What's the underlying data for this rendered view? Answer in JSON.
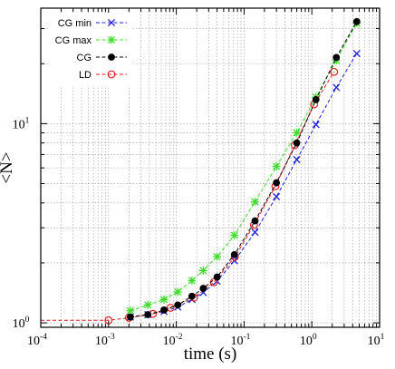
{
  "chart_data": {
    "type": "line",
    "xlabel": "time (s)",
    "ylabel": "<N>",
    "xscale": "log",
    "yscale": "log",
    "xlim": [
      0.0001,
      10
    ],
    "ylim": [
      0.95,
      38
    ],
    "grid": true,
    "legend_position": "top-left",
    "x_ticks": [
      {
        "base": "10",
        "exp": "-4",
        "value": 0.0001
      },
      {
        "base": "10",
        "exp": "-3",
        "value": 0.001
      },
      {
        "base": "10",
        "exp": "-2",
        "value": 0.01
      },
      {
        "base": "10",
        "exp": "-1",
        "value": 0.1
      },
      {
        "base": "10",
        "exp": "0",
        "value": 1
      },
      {
        "base": "10",
        "exp": "1",
        "value": 10
      }
    ],
    "y_ticks": [
      {
        "base": "10",
        "exp": "0",
        "value": 1
      },
      {
        "base": "10",
        "exp": "1",
        "value": 10
      }
    ],
    "series": [
      {
        "name": "CG min",
        "color": "#1f1fd6",
        "marker": "x",
        "x": [
          0.0021,
          0.0038,
          0.0066,
          0.0105,
          0.017,
          0.025,
          0.04,
          0.072,
          0.145,
          0.3,
          0.6,
          1.15,
          2.3,
          4.6
        ],
        "y": [
          1.07,
          1.1,
          1.14,
          1.2,
          1.31,
          1.42,
          1.62,
          2.05,
          2.85,
          4.3,
          6.6,
          9.9,
          15.2,
          22.5
        ]
      },
      {
        "name": "CG max",
        "color": "#3ddc2a",
        "marker": "star",
        "x": [
          0.0021,
          0.0038,
          0.0066,
          0.0105,
          0.017,
          0.025,
          0.04,
          0.072,
          0.145,
          0.3,
          0.6,
          1.15,
          2.3,
          4.6
        ],
        "y": [
          1.15,
          1.23,
          1.31,
          1.43,
          1.63,
          1.83,
          2.15,
          2.75,
          4.05,
          6.1,
          9.0,
          13.6,
          20.8,
          32.0
        ]
      },
      {
        "name": "CG",
        "color": "#000000",
        "marker": "filled-circle",
        "x": [
          0.0021,
          0.0038,
          0.0066,
          0.0105,
          0.017,
          0.025,
          0.04,
          0.072,
          0.145,
          0.3,
          0.6,
          1.15,
          2.3,
          4.6
        ],
        "y": [
          1.07,
          1.1,
          1.16,
          1.23,
          1.36,
          1.49,
          1.7,
          2.2,
          3.25,
          5.05,
          8.0,
          13.2,
          21.5,
          32.5
        ]
      },
      {
        "name": "LD",
        "color": "#e02020",
        "marker": "open-circle",
        "x": [
          0.001,
          0.002,
          0.0045,
          0.0082,
          0.0182,
          0.036,
          0.073,
          0.14,
          0.29,
          0.56,
          1.08,
          2.13
        ],
        "y": [
          1.03,
          1.06,
          1.11,
          1.19,
          1.34,
          1.6,
          2.14,
          3.1,
          4.85,
          7.8,
          12.5,
          18.2
        ]
      }
    ]
  }
}
